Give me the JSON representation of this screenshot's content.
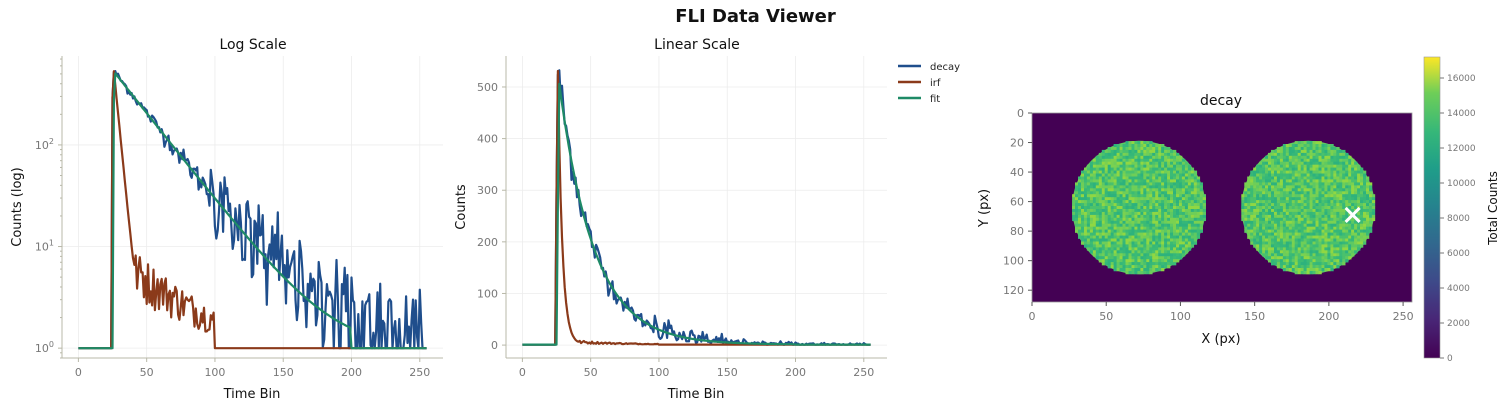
{
  "figure": {
    "suptitle": "FLI Data Viewer"
  },
  "colors": {
    "decay": "#1f4e8c",
    "irf": "#8b3a1a",
    "fit": "#1e8a66",
    "spine": "#b8b8a8",
    "grid": "#ececec"
  },
  "chart_data": [
    {
      "type": "line",
      "title": "Log Scale",
      "xlabel": "Time Bin",
      "ylabel": "Counts (log)",
      "yscale": "log",
      "xlim": [
        -12,
        267
      ],
      "ylim": [
        0.8,
        750
      ],
      "xticks": [
        0,
        50,
        100,
        150,
        200,
        250
      ],
      "yticks": [
        {
          "value": 1,
          "base": "10",
          "exp": "0"
        },
        {
          "value": 10,
          "base": "10",
          "exp": "1"
        },
        {
          "value": 100,
          "base": "10",
          "exp": "2"
        }
      ],
      "grid": true,
      "series_ref": "decay_curves"
    },
    {
      "type": "line",
      "title": "Linear Scale",
      "xlabel": "Time Bin",
      "ylabel": "Counts",
      "yscale": "linear",
      "xlim": [
        -12,
        267
      ],
      "ylim": [
        -25,
        560
      ],
      "xticks": [
        0,
        50,
        100,
        150,
        200,
        250
      ],
      "yticks": [
        0,
        100,
        200,
        300,
        400,
        500
      ],
      "grid": true,
      "legend": {
        "placement": "outside-upper-right",
        "entries": [
          "decay",
          "irf",
          "fit"
        ]
      },
      "series_ref": "decay_curves"
    },
    {
      "type": "heatmap",
      "title": "decay",
      "xlabel": "X (px)",
      "ylabel": "Y (px)",
      "xlim": [
        0,
        256
      ],
      "ylim": [
        128,
        0
      ],
      "xticks": [
        0,
        50,
        100,
        150,
        200,
        250
      ],
      "yticks": [
        0,
        20,
        40,
        60,
        80,
        100,
        120
      ],
      "colormap": "viridis",
      "background_value": 0,
      "disks": [
        {
          "cx": 72,
          "cy": 64,
          "r": 45,
          "mean_value": 12500
        },
        {
          "cx": 186,
          "cy": 64,
          "r": 45,
          "mean_value": 12500
        }
      ],
      "marker": {
        "symbol": "x",
        "x": 216,
        "y": 69,
        "color": "#ffffff"
      },
      "colorbar": {
        "label": "Total Counts",
        "min": 0,
        "max": 17200,
        "ticks": [
          0,
          2000,
          4000,
          6000,
          8000,
          10000,
          12000,
          14000,
          16000
        ]
      }
    }
  ],
  "decay_curves": {
    "x_range": [
      0,
      255
    ],
    "series": [
      {
        "name": "decay",
        "peak_bin": 26,
        "peak": 530,
        "tau_bins": 25.5,
        "baseline": 1,
        "points": [
          [
            0,
            1
          ],
          [
            24,
            1
          ],
          [
            25,
            380
          ],
          [
            26,
            530
          ],
          [
            30,
            500
          ],
          [
            40,
            350
          ],
          [
            50,
            225
          ],
          [
            60,
            150
          ],
          [
            70,
            100
          ],
          [
            80,
            65
          ],
          [
            90,
            40
          ],
          [
            100,
            28
          ],
          [
            120,
            12
          ],
          [
            140,
            5
          ],
          [
            160,
            2.5
          ],
          [
            180,
            1.4
          ],
          [
            200,
            1
          ],
          [
            255,
            1
          ]
        ]
      },
      {
        "name": "irf",
        "peak_bin": 26,
        "peak": 530,
        "tau_bins": 3.2,
        "baseline": 1,
        "points": [
          [
            0,
            1
          ],
          [
            24,
            1
          ],
          [
            25,
            480
          ],
          [
            26,
            530
          ],
          [
            28,
            300
          ],
          [
            30,
            120
          ],
          [
            34,
            25
          ],
          [
            40,
            10
          ],
          [
            50,
            6
          ],
          [
            70,
            4
          ],
          [
            90,
            2
          ],
          [
            100,
            1.5
          ],
          [
            105,
            1
          ],
          [
            255,
            1
          ]
        ]
      },
      {
        "name": "fit",
        "peak_bin": 27,
        "peak": 505,
        "tau_bins": 25.5,
        "baseline": 1,
        "points": [
          [
            0,
            1
          ],
          [
            24,
            1
          ],
          [
            25,
            300
          ],
          [
            27,
            505
          ],
          [
            40,
            340
          ],
          [
            60,
            148
          ],
          [
            80,
            64
          ],
          [
            100,
            28
          ],
          [
            120,
            12.5
          ],
          [
            150,
            4
          ],
          [
            180,
            1.6
          ],
          [
            199,
            1
          ],
          [
            255,
            1
          ]
        ]
      }
    ]
  }
}
